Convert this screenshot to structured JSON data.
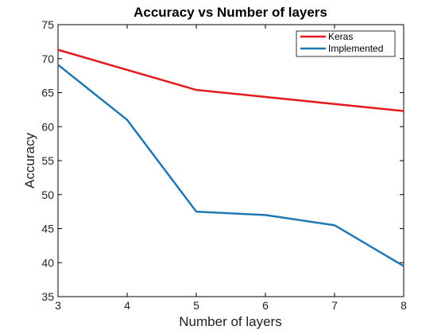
{
  "chart_data": {
    "type": "line",
    "title": "Accuracy vs Number of layers",
    "xlabel": "Number of layers",
    "ylabel": "Accuracy",
    "xlim": [
      3,
      8
    ],
    "ylim": [
      35,
      75
    ],
    "xticks": [
      3,
      4,
      5,
      6,
      7,
      8
    ],
    "yticks": [
      35,
      40,
      45,
      50,
      55,
      60,
      65,
      70,
      75
    ],
    "grid": false,
    "legend_position": "top-right",
    "series": [
      {
        "name": "Keras",
        "color": "#e41a1c",
        "x": [
          3,
          5,
          8
        ],
        "y": [
          71.3,
          65.4,
          62.3
        ]
      },
      {
        "name": "Implemented",
        "color": "#1f77b4",
        "x": [
          3,
          4,
          5,
          6,
          7,
          8
        ],
        "y": [
          69.1,
          61.0,
          47.5,
          47.0,
          45.5,
          39.5
        ]
      }
    ]
  }
}
